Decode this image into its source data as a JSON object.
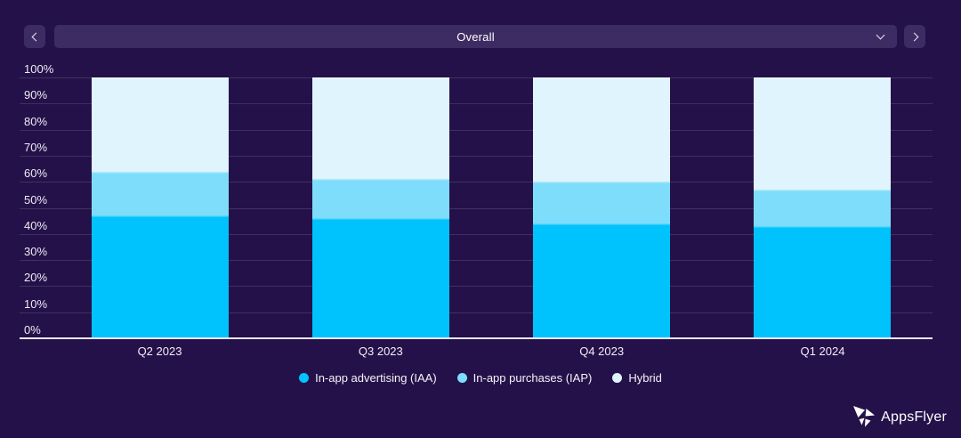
{
  "toolbar": {
    "dropdown_value": "Overall",
    "icons": {
      "prev": "chevron-left",
      "next": "chevron-right",
      "open": "chevron-down"
    }
  },
  "chart_data": {
    "type": "bar",
    "stacked": true,
    "categories": [
      "Q2 2023",
      "Q3 2023",
      "Q4 2023",
      "Q1 2024"
    ],
    "series": [
      {
        "name": "In-app advertising (IAA)",
        "color": "#00c2fc",
        "values": [
          47,
          46,
          44,
          43
        ]
      },
      {
        "name": "In-app purchases (IAP)",
        "color": "#7eddfb",
        "values": [
          17,
          15,
          16,
          14
        ]
      },
      {
        "name": "Hybrid",
        "color": "#dff4fd",
        "values": [
          36,
          39,
          40,
          43
        ]
      }
    ],
    "ylim": [
      0,
      100
    ],
    "ytick_step": 10,
    "yticks": [
      "0%",
      "10%",
      "20%",
      "30%",
      "40%",
      "50%",
      "60%",
      "70%",
      "80%",
      "90%",
      "100%"
    ],
    "grid": true,
    "legend_position": "bottom",
    "background_color": "#251149",
    "panel_color": "#3d2c63"
  },
  "footer": {
    "brand": "AppsFlyer"
  }
}
